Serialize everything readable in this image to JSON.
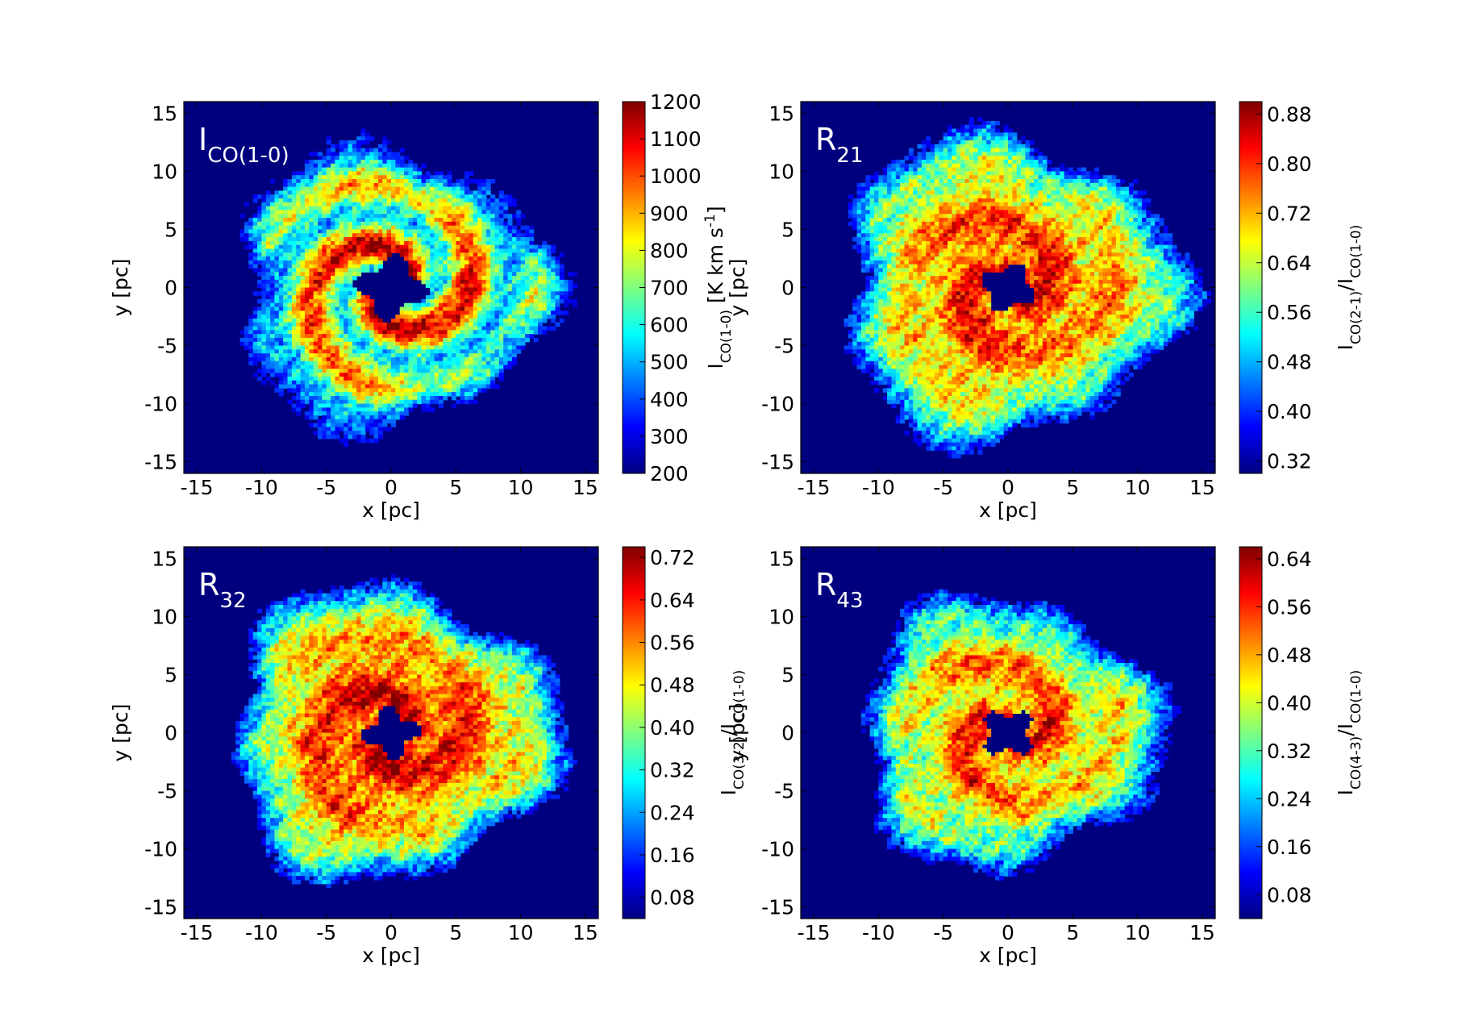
{
  "colors": {
    "jet": [
      "#00007f",
      "#0000ff",
      "#007fff",
      "#00ffff",
      "#7fff7f",
      "#ffff00",
      "#ff7f00",
      "#ff0000",
      "#7f0000"
    ],
    "background_low": "#00007f"
  },
  "chart_data": [
    {
      "type": "heatmap",
      "panel_label_main": "I",
      "panel_label_sub": "CO(1-0)",
      "xlabel": "x [pc]",
      "ylabel": "y [pc]",
      "xlim": [
        -16,
        16
      ],
      "ylim": [
        -16,
        16
      ],
      "xticks": [
        -15,
        -10,
        -5,
        0,
        5,
        10,
        15
      ],
      "yticks": [
        -15,
        -10,
        -5,
        0,
        5,
        10,
        15
      ],
      "colorbar": {
        "range": [
          200,
          1200
        ],
        "ticks": [
          "200",
          "300",
          "400",
          "500",
          "600",
          "700",
          "800",
          "900",
          "1000",
          "1100",
          "1200"
        ],
        "tick_values": [
          200,
          300,
          400,
          500,
          600,
          700,
          800,
          900,
          1000,
          1100,
          1200
        ],
        "label_parts": [
          {
            "t": "I"
          },
          {
            "t": "CO(1-0)",
            "sub": true
          },
          {
            "t": " [K km s"
          },
          {
            "t": "-1",
            "sup": true
          },
          {
            "t": "]"
          }
        ]
      },
      "field": {
        "peak": 0.7,
        "inner_radius_pc": 2.4,
        "outer_radius_pc": 12.5,
        "arms": 2,
        "arm_strength": 0.32,
        "seed": 11
      }
    },
    {
      "type": "heatmap",
      "panel_label_main": "R",
      "panel_label_sub": "21",
      "xlabel": "x [pc]",
      "ylabel": "y [pc]",
      "xlim": [
        -16,
        16
      ],
      "ylim": [
        -16,
        16
      ],
      "xticks": [
        -15,
        -10,
        -5,
        0,
        5,
        10,
        15
      ],
      "yticks": [
        -15,
        -10,
        -5,
        0,
        5,
        10,
        15
      ],
      "colorbar": {
        "range": [
          0.3,
          0.9
        ],
        "ticks": [
          "0.32",
          "0.40",
          "0.48",
          "0.56",
          "0.64",
          "0.72",
          "0.80",
          "0.88"
        ],
        "tick_values": [
          0.32,
          0.4,
          0.48,
          0.56,
          0.64,
          0.72,
          0.8,
          0.88
        ],
        "label_parts": [
          {
            "t": "I"
          },
          {
            "t": "CO(2-1)",
            "sub": true
          },
          {
            "t": "/I"
          },
          {
            "t": "CO(1-0)",
            "sub": true
          }
        ]
      },
      "field": {
        "peak": 0.83,
        "inner_radius_pc": 1.9,
        "outer_radius_pc": 13.5,
        "arms": 2,
        "arm_strength": 0.1,
        "seed": 23
      }
    },
    {
      "type": "heatmap",
      "panel_label_main": "R",
      "panel_label_sub": "32",
      "xlabel": "x [pc]",
      "ylabel": "y [pc]",
      "xlim": [
        -16,
        16
      ],
      "ylim": [
        -16,
        16
      ],
      "xticks": [
        -15,
        -10,
        -5,
        0,
        5,
        10,
        15
      ],
      "yticks": [
        -15,
        -10,
        -5,
        0,
        5,
        10,
        15
      ],
      "colorbar": {
        "range": [
          0.04,
          0.74
        ],
        "ticks": [
          "0.08",
          "0.16",
          "0.24",
          "0.32",
          "0.40",
          "0.48",
          "0.56",
          "0.64",
          "0.72"
        ],
        "tick_values": [
          0.08,
          0.16,
          0.24,
          0.32,
          0.4,
          0.48,
          0.56,
          0.64,
          0.72
        ],
        "label_parts": [
          {
            "t": "I"
          },
          {
            "t": "CO(3-2)",
            "sub": true
          },
          {
            "t": "/I"
          },
          {
            "t": "CO(1-0)",
            "sub": true
          }
        ]
      },
      "field": {
        "peak": 0.88,
        "inner_radius_pc": 1.9,
        "outer_radius_pc": 13.0,
        "arms": 2,
        "arm_strength": 0.1,
        "seed": 37
      }
    },
    {
      "type": "heatmap",
      "panel_label_main": "R",
      "panel_label_sub": "43",
      "xlabel": "x [pc]",
      "ylabel": "y [pc]",
      "xlim": [
        -16,
        16
      ],
      "ylim": [
        -16,
        16
      ],
      "xticks": [
        -15,
        -10,
        -5,
        0,
        5,
        10,
        15
      ],
      "yticks": [
        -15,
        -10,
        -5,
        0,
        5,
        10,
        15
      ],
      "colorbar": {
        "range": [
          0.04,
          0.66
        ],
        "ticks": [
          "0.08",
          "0.16",
          "0.24",
          "0.32",
          "0.40",
          "0.48",
          "0.56",
          "0.64"
        ],
        "tick_values": [
          0.08,
          0.16,
          0.24,
          0.32,
          0.4,
          0.48,
          0.56,
          0.64
        ],
        "label_parts": [
          {
            "t": "I"
          },
          {
            "t": "CO(4-3)",
            "sub": true
          },
          {
            "t": "/I"
          },
          {
            "t": "CO(1-0)",
            "sub": true
          }
        ]
      },
      "field": {
        "peak": 0.78,
        "inner_radius_pc": 1.9,
        "outer_radius_pc": 12.0,
        "arms": 2,
        "arm_strength": 0.14,
        "seed": 51
      }
    }
  ]
}
